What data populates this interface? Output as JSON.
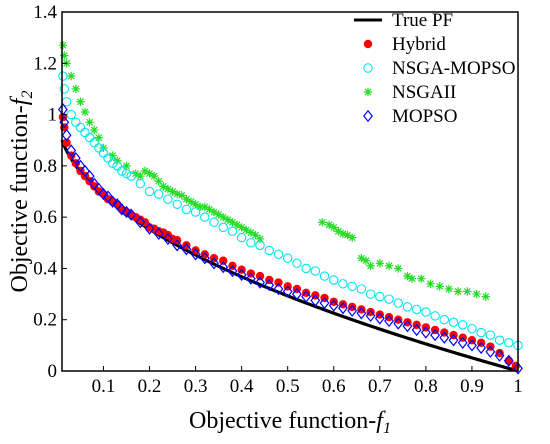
{
  "chart_data": {
    "type": "scatter",
    "xlabel": {
      "text": "Objective function-",
      "italic": "f",
      "sub": "1"
    },
    "ylabel": {
      "text": "Objective function-",
      "italic": "f",
      "sub": "2"
    },
    "xlim": [
      0.01,
      1.0
    ],
    "ylim": [
      0,
      1.4
    ],
    "xticks": [
      "0.1",
      "0.2",
      "0.3",
      "0.4",
      "0.5",
      "0.6",
      "0.7",
      "0.8",
      "0.9",
      "1"
    ],
    "xtick_values": [
      0.1,
      0.2,
      0.3,
      0.4,
      0.5,
      0.6,
      0.7,
      0.8,
      0.9,
      1.0
    ],
    "yticks": [
      "0",
      "0.2",
      "0.4",
      "0.6",
      "0.8",
      "1",
      "1.2",
      "1.4"
    ],
    "ytick_values": [
      0,
      0.2,
      0.4,
      0.6,
      0.8,
      1.0,
      1.2,
      1.4
    ],
    "grid": false,
    "legend_position": "top-right",
    "series": [
      {
        "name": "True PF",
        "kind": "line",
        "color": "#000000",
        "curve": "f2 = 1 - sqrt(f1)",
        "x_range": [
          0.01,
          1.0
        ]
      },
      {
        "name": "Hybrid",
        "kind": "filled-circle",
        "color": "#ff0000",
        "points": [
          [
            0.012,
            0.99
          ],
          [
            0.015,
            0.95
          ],
          [
            0.02,
            0.89
          ],
          [
            0.03,
            0.84
          ],
          [
            0.04,
            0.81
          ],
          [
            0.05,
            0.78
          ],
          [
            0.06,
            0.76
          ],
          [
            0.07,
            0.74
          ],
          [
            0.08,
            0.72
          ],
          [
            0.09,
            0.7
          ],
          [
            0.1,
            0.69
          ],
          [
            0.11,
            0.67
          ],
          [
            0.12,
            0.66
          ],
          [
            0.13,
            0.65
          ],
          [
            0.14,
            0.63
          ],
          [
            0.15,
            0.62
          ],
          [
            0.16,
            0.61
          ],
          [
            0.17,
            0.6
          ],
          [
            0.18,
            0.59
          ],
          [
            0.19,
            0.58
          ],
          [
            0.2,
            0.56
          ],
          [
            0.21,
            0.555
          ],
          [
            0.22,
            0.545
          ],
          [
            0.23,
            0.54
          ],
          [
            0.24,
            0.53
          ],
          [
            0.25,
            0.515
          ],
          [
            0.26,
            0.51
          ],
          [
            0.28,
            0.49
          ],
          [
            0.3,
            0.47
          ],
          [
            0.32,
            0.455
          ],
          [
            0.34,
            0.44
          ],
          [
            0.36,
            0.43
          ],
          [
            0.38,
            0.41
          ],
          [
            0.4,
            0.395
          ],
          [
            0.42,
            0.38
          ],
          [
            0.44,
            0.37
          ],
          [
            0.46,
            0.355
          ],
          [
            0.48,
            0.345
          ],
          [
            0.5,
            0.33
          ],
          [
            0.52,
            0.32
          ],
          [
            0.54,
            0.305
          ],
          [
            0.56,
            0.295
          ],
          [
            0.58,
            0.285
          ],
          [
            0.6,
            0.27
          ],
          [
            0.62,
            0.26
          ],
          [
            0.64,
            0.25
          ],
          [
            0.66,
            0.24
          ],
          [
            0.68,
            0.23
          ],
          [
            0.7,
            0.22
          ],
          [
            0.72,
            0.21
          ],
          [
            0.74,
            0.2
          ],
          [
            0.76,
            0.19
          ],
          [
            0.78,
            0.18
          ],
          [
            0.8,
            0.17
          ],
          [
            0.82,
            0.16
          ],
          [
            0.84,
            0.15
          ],
          [
            0.86,
            0.14
          ],
          [
            0.88,
            0.13
          ],
          [
            0.9,
            0.12
          ],
          [
            0.92,
            0.11
          ],
          [
            0.94,
            0.095
          ],
          [
            0.96,
            0.07
          ],
          [
            0.98,
            0.04
          ],
          [
            0.995,
            0.02
          ]
        ]
      },
      {
        "name": "NSGA-MOPSO",
        "kind": "open-circle",
        "color": "#00e5ee",
        "points": [
          [
            0.012,
            1.15
          ],
          [
            0.015,
            1.1
          ],
          [
            0.02,
            1.05
          ],
          [
            0.03,
            1.0
          ],
          [
            0.04,
            0.97
          ],
          [
            0.05,
            0.95
          ],
          [
            0.06,
            0.93
          ],
          [
            0.07,
            0.91
          ],
          [
            0.08,
            0.89
          ],
          [
            0.09,
            0.87
          ],
          [
            0.1,
            0.85
          ],
          [
            0.11,
            0.83
          ],
          [
            0.12,
            0.81
          ],
          [
            0.13,
            0.8
          ],
          [
            0.14,
            0.78
          ],
          [
            0.15,
            0.77
          ],
          [
            0.16,
            0.76
          ],
          [
            0.18,
            0.73
          ],
          [
            0.2,
            0.7
          ],
          [
            0.22,
            0.69
          ],
          [
            0.24,
            0.67
          ],
          [
            0.26,
            0.65
          ],
          [
            0.28,
            0.63
          ],
          [
            0.3,
            0.62
          ],
          [
            0.32,
            0.6
          ],
          [
            0.34,
            0.58
          ],
          [
            0.36,
            0.56
          ],
          [
            0.38,
            0.545
          ],
          [
            0.4,
            0.52
          ],
          [
            0.42,
            0.5
          ],
          [
            0.44,
            0.49
          ],
          [
            0.46,
            0.47
          ],
          [
            0.48,
            0.455
          ],
          [
            0.5,
            0.44
          ],
          [
            0.52,
            0.42
          ],
          [
            0.54,
            0.4
          ],
          [
            0.56,
            0.39
          ],
          [
            0.58,
            0.37
          ],
          [
            0.6,
            0.355
          ],
          [
            0.62,
            0.34
          ],
          [
            0.64,
            0.33
          ],
          [
            0.66,
            0.32
          ],
          [
            0.68,
            0.3
          ],
          [
            0.7,
            0.29
          ],
          [
            0.72,
            0.28
          ],
          [
            0.74,
            0.265
          ],
          [
            0.76,
            0.25
          ],
          [
            0.78,
            0.24
          ],
          [
            0.8,
            0.23
          ],
          [
            0.82,
            0.215
          ],
          [
            0.84,
            0.2
          ],
          [
            0.86,
            0.19
          ],
          [
            0.88,
            0.18
          ],
          [
            0.9,
            0.165
          ],
          [
            0.92,
            0.15
          ],
          [
            0.94,
            0.14
          ],
          [
            0.96,
            0.12
          ],
          [
            0.98,
            0.11
          ],
          [
            1.0,
            0.1
          ]
        ]
      },
      {
        "name": "NSGAII",
        "kind": "asterisk",
        "color": "#22dd22",
        "points": [
          [
            0.012,
            1.27
          ],
          [
            0.015,
            1.23
          ],
          [
            0.02,
            1.2
          ],
          [
            0.03,
            1.15
          ],
          [
            0.04,
            1.1
          ],
          [
            0.05,
            1.05
          ],
          [
            0.06,
            1.01
          ],
          [
            0.07,
            0.97
          ],
          [
            0.08,
            0.94
          ],
          [
            0.09,
            0.91
          ],
          [
            0.1,
            0.87
          ],
          [
            0.12,
            0.84
          ],
          [
            0.13,
            0.82
          ],
          [
            0.15,
            0.8
          ],
          [
            0.17,
            0.77
          ],
          [
            0.18,
            0.76
          ],
          [
            0.19,
            0.78
          ],
          [
            0.2,
            0.77
          ],
          [
            0.21,
            0.76
          ],
          [
            0.22,
            0.74
          ],
          [
            0.23,
            0.72
          ],
          [
            0.24,
            0.71
          ],
          [
            0.25,
            0.7
          ],
          [
            0.26,
            0.69
          ],
          [
            0.27,
            0.685
          ],
          [
            0.28,
            0.67
          ],
          [
            0.29,
            0.66
          ],
          [
            0.3,
            0.65
          ],
          [
            0.31,
            0.64
          ],
          [
            0.32,
            0.64
          ],
          [
            0.33,
            0.63
          ],
          [
            0.34,
            0.62
          ],
          [
            0.35,
            0.61
          ],
          [
            0.36,
            0.6
          ],
          [
            0.37,
            0.59
          ],
          [
            0.38,
            0.58
          ],
          [
            0.39,
            0.57
          ],
          [
            0.4,
            0.56
          ],
          [
            0.41,
            0.55
          ],
          [
            0.42,
            0.54
          ],
          [
            0.43,
            0.53
          ],
          [
            0.44,
            0.515
          ],
          [
            0.575,
            0.58
          ],
          [
            0.59,
            0.57
          ],
          [
            0.6,
            0.56
          ],
          [
            0.61,
            0.545
          ],
          [
            0.62,
            0.535
          ],
          [
            0.63,
            0.53
          ],
          [
            0.64,
            0.52
          ],
          [
            0.66,
            0.44
          ],
          [
            0.67,
            0.43
          ],
          [
            0.68,
            0.41
          ],
          [
            0.7,
            0.42
          ],
          [
            0.72,
            0.41
          ],
          [
            0.74,
            0.4
          ],
          [
            0.76,
            0.37
          ],
          [
            0.77,
            0.36
          ],
          [
            0.79,
            0.36
          ],
          [
            0.81,
            0.34
          ],
          [
            0.83,
            0.33
          ],
          [
            0.85,
            0.32
          ],
          [
            0.87,
            0.31
          ],
          [
            0.89,
            0.31
          ],
          [
            0.91,
            0.3
          ],
          [
            0.93,
            0.29
          ]
        ]
      },
      {
        "name": "MOPSO",
        "kind": "open-diamond",
        "color": "#0000ff",
        "points": [
          [
            0.012,
            1.02
          ],
          [
            0.015,
            0.97
          ],
          [
            0.02,
            0.92
          ],
          [
            0.03,
            0.86
          ],
          [
            0.04,
            0.83
          ],
          [
            0.05,
            0.8
          ],
          [
            0.06,
            0.78
          ],
          [
            0.07,
            0.76
          ],
          [
            0.08,
            0.73
          ],
          [
            0.09,
            0.71
          ],
          [
            0.1,
            0.69
          ],
          [
            0.11,
            0.68
          ],
          [
            0.12,
            0.66
          ],
          [
            0.13,
            0.65
          ],
          [
            0.14,
            0.63
          ],
          [
            0.15,
            0.62
          ],
          [
            0.16,
            0.61
          ],
          [
            0.18,
            0.58
          ],
          [
            0.2,
            0.555
          ],
          [
            0.22,
            0.535
          ],
          [
            0.24,
            0.515
          ],
          [
            0.26,
            0.49
          ],
          [
            0.28,
            0.475
          ],
          [
            0.3,
            0.455
          ],
          [
            0.32,
            0.44
          ],
          [
            0.34,
            0.42
          ],
          [
            0.36,
            0.405
          ],
          [
            0.38,
            0.39
          ],
          [
            0.4,
            0.375
          ],
          [
            0.42,
            0.36
          ],
          [
            0.44,
            0.345
          ],
          [
            0.46,
            0.335
          ],
          [
            0.48,
            0.32
          ],
          [
            0.5,
            0.31
          ],
          [
            0.52,
            0.3
          ],
          [
            0.54,
            0.29
          ],
          [
            0.56,
            0.275
          ],
          [
            0.58,
            0.265
          ],
          [
            0.6,
            0.255
          ],
          [
            0.62,
            0.245
          ],
          [
            0.64,
            0.235
          ],
          [
            0.66,
            0.225
          ],
          [
            0.68,
            0.215
          ],
          [
            0.7,
            0.205
          ],
          [
            0.72,
            0.195
          ],
          [
            0.74,
            0.185
          ],
          [
            0.76,
            0.175
          ],
          [
            0.78,
            0.16
          ],
          [
            0.8,
            0.15
          ],
          [
            0.82,
            0.14
          ],
          [
            0.84,
            0.13
          ],
          [
            0.86,
            0.12
          ],
          [
            0.88,
            0.11
          ],
          [
            0.9,
            0.1
          ],
          [
            0.92,
            0.09
          ],
          [
            0.94,
            0.075
          ],
          [
            0.96,
            0.06
          ],
          [
            0.98,
            0.04
          ],
          [
            1.0,
            0.01
          ]
        ]
      }
    ]
  }
}
